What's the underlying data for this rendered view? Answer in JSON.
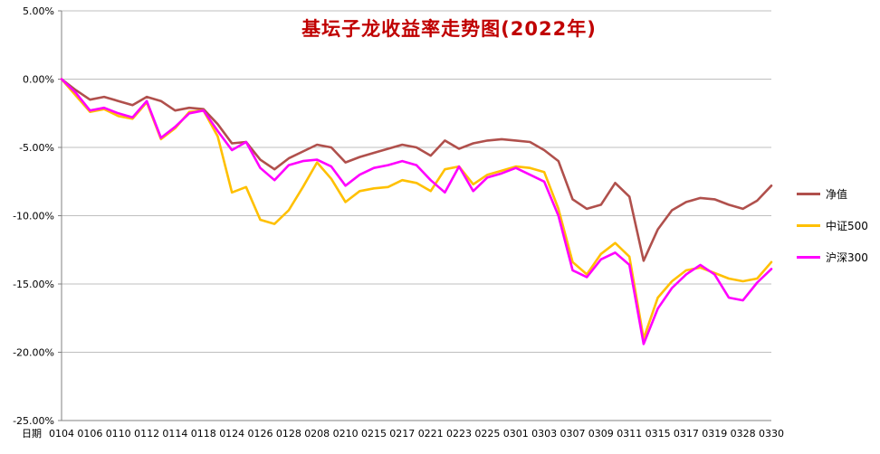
{
  "chart_data": {
    "type": "line",
    "title": "基坛子龙收益率走势图(2022年)",
    "title_color": "#C00000",
    "xlabel": "日期",
    "ylabel": "",
    "ylim": [
      -25,
      5
    ],
    "y_ticks": [
      5,
      0,
      -5,
      -10,
      -15,
      -20,
      -25
    ],
    "y_tick_labels": [
      "5.00%",
      "0.00%",
      "-5.00%",
      "-10.00%",
      "-15.00%",
      "-20.00%",
      "-25.00%"
    ],
    "grid": "horizontal",
    "legend_position": "right",
    "n_points": 51,
    "x_label_every": 2,
    "x_tick_labels": [
      "0104",
      "0106",
      "0110",
      "0112",
      "0114",
      "0118",
      "0124",
      "0126",
      "0128",
      "0208",
      "0210",
      "0215",
      "0217",
      "0221",
      "0223",
      "0225",
      "0301",
      "0303",
      "0307",
      "0309",
      "0311",
      "0315",
      "0317",
      "0319",
      "0328",
      "0330"
    ],
    "value_unit": "%",
    "series": [
      {
        "name": "净值",
        "color": "#B0504C",
        "values": [
          0.0,
          -0.8,
          -1.5,
          -1.3,
          -1.6,
          -1.9,
          -1.3,
          -1.6,
          -2.3,
          -2.1,
          -2.2,
          -3.3,
          -4.7,
          -4.6,
          -5.9,
          -6.6,
          -5.8,
          -5.3,
          -4.8,
          -5.0,
          -6.1,
          -5.7,
          -5.4,
          -5.1,
          -4.8,
          -5.0,
          -5.6,
          -4.5,
          -5.1,
          -4.7,
          -4.5,
          -4.4,
          -4.5,
          -4.6,
          -5.2,
          -6.0,
          -8.8,
          -9.5,
          -9.2,
          -7.6,
          -8.6,
          -13.3,
          -11.0,
          -9.6,
          -9.0,
          -8.7,
          -8.8,
          -9.2,
          -9.5,
          -8.9,
          -7.8
        ]
      },
      {
        "name": "中证500",
        "color": "#FFC000",
        "values": [
          0.0,
          -1.2,
          -2.4,
          -2.2,
          -2.7,
          -2.9,
          -1.7,
          -4.4,
          -3.6,
          -2.4,
          -2.3,
          -4.2,
          -8.3,
          -7.9,
          -10.3,
          -10.6,
          -9.6,
          -7.9,
          -6.1,
          -7.3,
          -9.0,
          -8.2,
          -8.0,
          -7.9,
          -7.4,
          -7.6,
          -8.2,
          -6.6,
          -6.4,
          -7.7,
          -7.0,
          -6.7,
          -6.4,
          -6.5,
          -6.8,
          -9.5,
          -13.4,
          -14.3,
          -12.8,
          -12.0,
          -13.0,
          -19.0,
          -16.0,
          -14.8,
          -14.0,
          -13.8,
          -14.2,
          -14.6,
          -14.8,
          -14.6,
          -13.4
        ]
      },
      {
        "name": "沪深300",
        "color": "#FF00FF",
        "values": [
          0.0,
          -1.0,
          -2.3,
          -2.1,
          -2.5,
          -2.8,
          -1.6,
          -4.3,
          -3.5,
          -2.5,
          -2.3,
          -3.8,
          -5.2,
          -4.6,
          -6.5,
          -7.4,
          -6.3,
          -6.0,
          -5.9,
          -6.4,
          -7.8,
          -7.0,
          -6.5,
          -6.3,
          -6.0,
          -6.3,
          -7.4,
          -8.3,
          -6.4,
          -8.2,
          -7.2,
          -6.9,
          -6.5,
          -7.0,
          -7.5,
          -10.0,
          -14.0,
          -14.5,
          -13.2,
          -12.7,
          -13.6,
          -19.4,
          -16.8,
          -15.3,
          -14.3,
          -13.6,
          -14.3,
          -16.0,
          -16.2,
          -14.9,
          -13.9
        ]
      }
    ]
  },
  "colors": {
    "gridline": "#BFBFBF",
    "axis": "#808080",
    "tick_text": "#000000"
  }
}
